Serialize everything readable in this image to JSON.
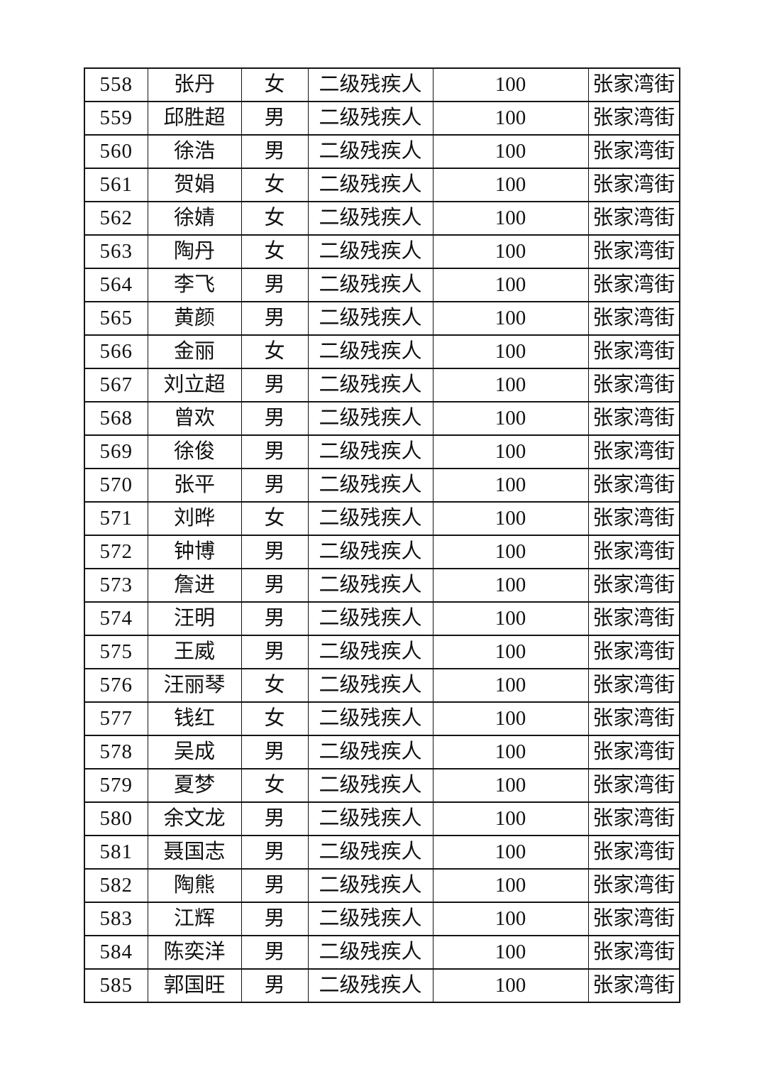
{
  "page": {
    "background_color": "#ffffff",
    "text_color": "#111111",
    "border_color": "#141414"
  },
  "table": {
    "rows": [
      {
        "no": "558",
        "name": "张丹",
        "gender": "女",
        "category": "二级残疾人",
        "amount": "100",
        "street": "张家湾街"
      },
      {
        "no": "559",
        "name": "邱胜超",
        "gender": "男",
        "category": "二级残疾人",
        "amount": "100",
        "street": "张家湾街"
      },
      {
        "no": "560",
        "name": "徐浩",
        "gender": "男",
        "category": "二级残疾人",
        "amount": "100",
        "street": "张家湾街"
      },
      {
        "no": "561",
        "name": "贺娟",
        "gender": "女",
        "category": "二级残疾人",
        "amount": "100",
        "street": "张家湾街"
      },
      {
        "no": "562",
        "name": "徐婧",
        "gender": "女",
        "category": "二级残疾人",
        "amount": "100",
        "street": "张家湾街"
      },
      {
        "no": "563",
        "name": "陶丹",
        "gender": "女",
        "category": "二级残疾人",
        "amount": "100",
        "street": "张家湾街"
      },
      {
        "no": "564",
        "name": "李飞",
        "gender": "男",
        "category": "二级残疾人",
        "amount": "100",
        "street": "张家湾街"
      },
      {
        "no": "565",
        "name": "黄颜",
        "gender": "男",
        "category": "二级残疾人",
        "amount": "100",
        "street": "张家湾街"
      },
      {
        "no": "566",
        "name": "金丽",
        "gender": "女",
        "category": "二级残疾人",
        "amount": "100",
        "street": "张家湾街"
      },
      {
        "no": "567",
        "name": "刘立超",
        "gender": "男",
        "category": "二级残疾人",
        "amount": "100",
        "street": "张家湾街"
      },
      {
        "no": "568",
        "name": "曾欢",
        "gender": "男",
        "category": "二级残疾人",
        "amount": "100",
        "street": "张家湾街"
      },
      {
        "no": "569",
        "name": "徐俊",
        "gender": "男",
        "category": "二级残疾人",
        "amount": "100",
        "street": "张家湾街"
      },
      {
        "no": "570",
        "name": "张平",
        "gender": "男",
        "category": "二级残疾人",
        "amount": "100",
        "street": "张家湾街"
      },
      {
        "no": "571",
        "name": "刘晔",
        "gender": "女",
        "category": "二级残疾人",
        "amount": "100",
        "street": "张家湾街"
      },
      {
        "no": "572",
        "name": "钟博",
        "gender": "男",
        "category": "二级残疾人",
        "amount": "100",
        "street": "张家湾街"
      },
      {
        "no": "573",
        "name": "詹进",
        "gender": "男",
        "category": "二级残疾人",
        "amount": "100",
        "street": "张家湾街"
      },
      {
        "no": "574",
        "name": "汪明",
        "gender": "男",
        "category": "二级残疾人",
        "amount": "100",
        "street": "张家湾街"
      },
      {
        "no": "575",
        "name": "王威",
        "gender": "男",
        "category": "二级残疾人",
        "amount": "100",
        "street": "张家湾街"
      },
      {
        "no": "576",
        "name": "汪丽琴",
        "gender": "女",
        "category": "二级残疾人",
        "amount": "100",
        "street": "张家湾街"
      },
      {
        "no": "577",
        "name": "钱红",
        "gender": "女",
        "category": "二级残疾人",
        "amount": "100",
        "street": "张家湾街"
      },
      {
        "no": "578",
        "name": "吴成",
        "gender": "男",
        "category": "二级残疾人",
        "amount": "100",
        "street": "张家湾街"
      },
      {
        "no": "579",
        "name": "夏梦",
        "gender": "女",
        "category": "二级残疾人",
        "amount": "100",
        "street": "张家湾街"
      },
      {
        "no": "580",
        "name": "余文龙",
        "gender": "男",
        "category": "二级残疾人",
        "amount": "100",
        "street": "张家湾街"
      },
      {
        "no": "581",
        "name": "聂国志",
        "gender": "男",
        "category": "二级残疾人",
        "amount": "100",
        "street": "张家湾街"
      },
      {
        "no": "582",
        "name": "陶熊",
        "gender": "男",
        "category": "二级残疾人",
        "amount": "100",
        "street": "张家湾街"
      },
      {
        "no": "583",
        "name": "江辉",
        "gender": "男",
        "category": "二级残疾人",
        "amount": "100",
        "street": "张家湾街"
      },
      {
        "no": "584",
        "name": "陈奕洋",
        "gender": "男",
        "category": "二级残疾人",
        "amount": "100",
        "street": "张家湾街"
      },
      {
        "no": "585",
        "name": "郭国旺",
        "gender": "男",
        "category": "二级残疾人",
        "amount": "100",
        "street": "张家湾街"
      }
    ]
  }
}
